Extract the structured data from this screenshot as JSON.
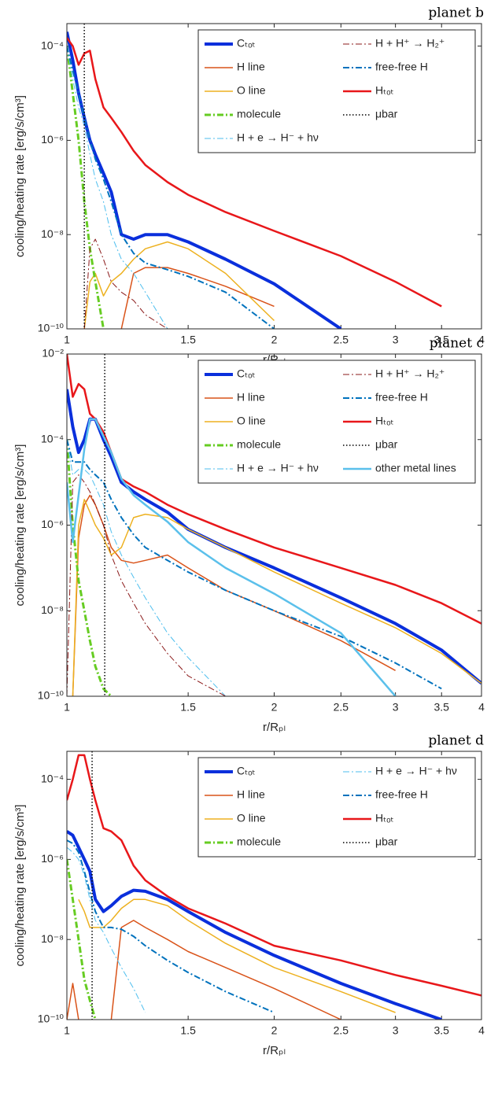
{
  "chart_data": [
    {
      "type": "line",
      "title": "planet b",
      "xlabel": "r/Rₚₗ",
      "ylabel": "cooling/heating rate [erg/s/cm³]",
      "xscale": "log",
      "yscale": "log",
      "xlim": [
        1,
        4
      ],
      "xticks": [
        1,
        1.5,
        2,
        2.5,
        3,
        3.5,
        4
      ],
      "ylim": [
        1e-10,
        0.0003
      ],
      "yticks": [
        {
          "value": 1e-10,
          "label": "10⁻¹⁰"
        },
        {
          "value": 1e-08,
          "label": "10⁻⁸"
        },
        {
          "value": 1e-06,
          "label": "10⁻⁶"
        },
        {
          "value": 0.0001,
          "label": "10⁻⁴"
        }
      ],
      "legend": "upper right",
      "x": [
        1,
        1.02,
        1.04,
        1.06,
        1.08,
        1.1,
        1.13,
        1.16,
        1.2,
        1.25,
        1.3,
        1.4,
        1.5,
        1.7,
        2,
        2.5,
        3,
        3.5,
        4
      ],
      "series": [
        {
          "name": "Cₜₒₜ",
          "color": "#0a2fdc",
          "width": 4,
          "style": "solid",
          "values": [
            0.0002,
            5e-05,
            1e-05,
            3e-06,
            1e-06,
            5e-07,
            2e-07,
            8e-08,
            1e-08,
            8e-09,
            1e-08,
            1e-08,
            7e-09,
            3e-09,
            9e-10,
            1e-10,
            null,
            null,
            null
          ]
        },
        {
          "name": "H line",
          "color": "#d95319",
          "width": 1.5,
          "style": "solid",
          "values": [
            null,
            null,
            null,
            null,
            null,
            null,
            null,
            null,
            1e-10,
            1.5e-09,
            2e-09,
            2e-09,
            1.5e-09,
            8e-10,
            3e-10,
            null,
            null,
            null,
            null
          ]
        },
        {
          "name": "O line",
          "color": "#edb120",
          "width": 1.5,
          "style": "solid",
          "values": [
            null,
            null,
            null,
            1e-10,
            1e-09,
            1.5e-09,
            5e-10,
            1e-09,
            1.5e-09,
            3e-09,
            5e-09,
            7e-09,
            5e-09,
            1.5e-09,
            1.5e-10,
            null,
            null,
            null,
            null
          ]
        },
        {
          "name": "molecule",
          "color": "#66cc22",
          "width": 3,
          "style": "dashdot",
          "values": [
            0.0001,
            1e-05,
            1e-06,
            5e-08,
            5e-09,
            1e-09,
            1e-10,
            null,
            null,
            null,
            null,
            null,
            null,
            null,
            null,
            null,
            null,
            null,
            null
          ]
        },
        {
          "name": "H + e → H⁻ + hν",
          "color": "#4dbeee",
          "width": 1,
          "style": "dashdot",
          "values": [
            0.0001,
            2e-05,
            5e-06,
            2e-06,
            5e-07,
            1.5e-07,
            5e-08,
            1e-08,
            3e-09,
            1.5e-09,
            6e-10,
            1e-10,
            null,
            null,
            null,
            null,
            null,
            null,
            null
          ]
        },
        {
          "name": "H + H⁺ → H₂⁺",
          "color": "#8b1a1a",
          "width": 1,
          "style": "dashdot",
          "values": [
            null,
            null,
            null,
            1e-10,
            5e-09,
            8e-09,
            3e-09,
            1e-09,
            6e-10,
            4e-10,
            2e-10,
            1e-10,
            null,
            null,
            null,
            null,
            null,
            null,
            null
          ]
        },
        {
          "name": "free-free H",
          "color": "#0072bd",
          "width": 2,
          "style": "dashdot",
          "values": [
            0.0001,
            3e-05,
            1e-05,
            3e-06,
            1e-06,
            4e-07,
            1.5e-07,
            5e-08,
            1e-08,
            4e-09,
            2.5e-09,
            1.8e-09,
            1.3e-09,
            6e-10,
            1e-10,
            null,
            null,
            null,
            null
          ]
        },
        {
          "name": "Hₜₒₜ",
          "color": "#e8171a",
          "width": 2.5,
          "style": "solid",
          "values": [
            0.00015,
            0.0001,
            4e-05,
            7e-05,
            8e-05,
            2e-05,
            5e-06,
            3e-06,
            1.5e-06,
            6e-07,
            3e-07,
            1.3e-07,
            7e-08,
            3e-08,
            1.2e-08,
            3.5e-09,
            1e-09,
            3e-10,
            null
          ]
        },
        {
          "name": "μbar",
          "color": "#000000",
          "width": 1.5,
          "style": "dotted",
          "x": 1.06
        }
      ]
    },
    {
      "type": "line",
      "title": "planet c",
      "xlabel": "r/Rₚₗ",
      "ylabel": "cooling/heating rate [erg/s/cm³]",
      "xscale": "log",
      "yscale": "log",
      "xlim": [
        1,
        4
      ],
      "xticks": [
        1,
        1.5,
        2,
        2.5,
        3,
        3.5,
        4
      ],
      "ylim": [
        1e-10,
        0.01
      ],
      "yticks": [
        {
          "value": 1e-10,
          "label": "10⁻¹⁰"
        },
        {
          "value": 1e-08,
          "label": "10⁻⁸"
        },
        {
          "value": 1e-06,
          "label": "10⁻⁶"
        },
        {
          "value": 0.0001,
          "label": "10⁻⁴"
        },
        {
          "value": 0.01,
          "label": "10⁻²"
        }
      ],
      "legend": "upper right",
      "x": [
        1,
        1.02,
        1.04,
        1.06,
        1.08,
        1.1,
        1.13,
        1.16,
        1.2,
        1.25,
        1.3,
        1.4,
        1.5,
        1.7,
        2,
        2.5,
        3,
        3.5,
        4
      ],
      "series": [
        {
          "name": "Cₜₒₜ",
          "color": "#0a2fdc",
          "width": 4,
          "style": "solid",
          "values": [
            0.0015,
            0.0002,
            5e-05,
            0.0001,
            0.0003,
            0.0003,
            0.0001,
            4e-05,
            1e-05,
            6e-06,
            4e-06,
            2e-06,
            8e-07,
            3e-07,
            1e-07,
            2e-08,
            5e-09,
            1.2e-09,
            2e-10
          ]
        },
        {
          "name": "H line",
          "color": "#d95319",
          "width": 1.5,
          "style": "solid",
          "values": [
            null,
            1e-10,
            5e-07,
            3e-06,
            5e-06,
            3e-06,
            1e-06,
            3e-07,
            1.5e-07,
            1.3e-07,
            1.5e-07,
            2e-07,
            1e-07,
            3e-08,
            1e-08,
            2e-09,
            4e-10,
            null,
            null
          ]
        },
        {
          "name": "O line",
          "color": "#edb120",
          "width": 1.5,
          "style": "solid",
          "values": [
            null,
            1e-10,
            1e-06,
            4e-06,
            2e-06,
            1e-06,
            5e-07,
            2e-07,
            3e-07,
            1.5e-06,
            1.8e-06,
            1.5e-06,
            8e-07,
            3e-07,
            8e-08,
            1.5e-08,
            4e-09,
            1e-09,
            2e-10
          ]
        },
        {
          "name": "molecule",
          "color": "#66cc22",
          "width": 3,
          "style": "dashdot",
          "values": [
            0.0001,
            1e-06,
            5e-08,
            1e-08,
            2e-09,
            5e-10,
            1.5e-10,
            1e-10,
            null,
            null,
            null,
            null,
            null,
            null,
            null,
            null,
            null,
            null,
            null
          ]
        },
        {
          "name": "H + e → H⁻ + hν",
          "color": "#4dbeee",
          "width": 1,
          "style": "dashdot",
          "values": [
            0.0001,
            1.5e-05,
            2e-05,
            2e-05,
            1.5e-05,
            8e-06,
            3e-06,
            7e-07,
            2e-07,
            6e-08,
            2e-08,
            3e-09,
            8e-10,
            1e-10,
            null,
            null,
            null,
            null,
            null
          ]
        },
        {
          "name": "H + H⁺ → H₂⁺",
          "color": "#8b1a1a",
          "width": 1,
          "style": "dashdot",
          "values": [
            1e-10,
            1e-05,
            1.5e-05,
            1e-05,
            6e-06,
            3e-06,
            1e-06,
            2e-07,
            5e-08,
            1.5e-08,
            5e-09,
            1e-09,
            3e-10,
            1e-10,
            null,
            null,
            null,
            null,
            null
          ]
        },
        {
          "name": "free-free H",
          "color": "#0072bd",
          "width": 2,
          "style": "dashdot",
          "values": [
            0.0001,
            3e-05,
            3e-05,
            3e-05,
            2e-05,
            1.5e-05,
            1e-05,
            4e-06,
            1.5e-06,
            6e-07,
            3e-07,
            1.5e-07,
            8e-08,
            3e-08,
            1e-08,
            2.5e-09,
            6e-10,
            1.5e-10,
            null
          ]
        },
        {
          "name": "Hₜₒₜ",
          "color": "#e8171a",
          "width": 2.5,
          "style": "solid",
          "values": [
            0.01,
            0.001,
            0.002,
            0.0015,
            0.0004,
            0.0003,
            0.00015,
            5e-05,
            1.2e-05,
            8e-06,
            6e-06,
            3e-06,
            1.8e-06,
            8e-07,
            3e-07,
            1e-07,
            4e-08,
            1.5e-08,
            5e-09
          ]
        },
        {
          "name": "μbar",
          "color": "#000000",
          "width": 1.5,
          "style": "dotted",
          "x": 1.135
        },
        {
          "name": "other metal lines",
          "color": "#5bc0eb",
          "width": 2.5,
          "style": "solid",
          "values": [
            1e-05,
            4e-07,
            5e-06,
            6e-05,
            0.0003,
            0.0003,
            0.00012,
            5e-05,
            1.2e-05,
            5e-06,
            3e-06,
            1.2e-06,
            4e-07,
            1e-07,
            2.5e-08,
            3e-09,
            1e-10,
            null,
            null
          ]
        }
      ]
    },
    {
      "type": "line",
      "title": "planet d",
      "xlabel": "r/Rₚₗ",
      "ylabel": "cooling/heating rate [erg/s/cm³]",
      "xscale": "log",
      "yscale": "log",
      "xlim": [
        1,
        4
      ],
      "xticks": [
        1,
        1.5,
        2,
        2.5,
        3,
        3.5,
        4
      ],
      "ylim": [
        1e-10,
        0.0005
      ],
      "yticks": [
        {
          "value": 1e-10,
          "label": "10⁻¹⁰"
        },
        {
          "value": 1e-08,
          "label": "10⁻⁸"
        },
        {
          "value": 1e-06,
          "label": "10⁻⁶"
        },
        {
          "value": 0.0001,
          "label": "10⁻⁴"
        }
      ],
      "legend": "upper right",
      "x": [
        1,
        1.02,
        1.04,
        1.06,
        1.08,
        1.1,
        1.13,
        1.16,
        1.2,
        1.25,
        1.3,
        1.4,
        1.5,
        1.7,
        2,
        2.5,
        3,
        3.5,
        4
      ],
      "series": [
        {
          "name": "Cₜₒₜ",
          "color": "#0a2fdc",
          "width": 4,
          "style": "solid",
          "values": [
            5e-06,
            4e-06,
            2e-06,
            1e-06,
            5e-07,
            1e-07,
            5e-08,
            7e-08,
            1.2e-07,
            1.7e-07,
            1.6e-07,
            1e-07,
            5e-08,
            1.5e-08,
            4e-09,
            8e-10,
            2.5e-10,
            1e-10,
            null
          ]
        },
        {
          "name": "H line",
          "color": "#d95319",
          "width": 1.5,
          "style": "solid",
          "values": [
            1e-10,
            8e-10,
            1e-10,
            null,
            null,
            null,
            null,
            1e-10,
            2e-08,
            3e-08,
            2e-08,
            1e-08,
            5e-09,
            2e-09,
            6e-10,
            1e-10,
            null,
            null,
            null
          ]
        },
        {
          "name": "O line",
          "color": "#edb120",
          "width": 1.5,
          "style": "solid",
          "values": [
            null,
            null,
            1e-07,
            5e-08,
            2e-08,
            2e-08,
            2e-08,
            3e-08,
            6e-08,
            1e-07,
            1e-07,
            7e-08,
            3e-08,
            8e-09,
            2e-09,
            5e-10,
            1.5e-10,
            null,
            null
          ]
        },
        {
          "name": "molecule",
          "color": "#66cc22",
          "width": 3,
          "style": "dashdot",
          "values": [
            1e-06,
            1e-07,
            1e-08,
            1e-09,
            3e-10,
            1e-10,
            null,
            null,
            null,
            null,
            null,
            null,
            null,
            null,
            null,
            null,
            null,
            null,
            null
          ]
        },
        {
          "name": "H + e → H⁻ + hν",
          "color": "#4dbeee",
          "width": 1,
          "style": "dashdot",
          "values": [
            2e-06,
            1.5e-06,
            1e-06,
            4e-07,
            1e-07,
            3e-08,
            1.5e-08,
            6e-09,
            2e-09,
            6e-10,
            1.5e-10,
            null,
            null,
            null,
            null,
            null,
            null,
            null,
            null
          ]
        },
        {
          "name": "free-free H",
          "color": "#0072bd",
          "width": 2,
          "style": "dashdot",
          "values": [
            3e-06,
            2.5e-06,
            1.5e-06,
            5e-07,
            1.5e-07,
            5e-08,
            2e-08,
            2e-08,
            1.8e-08,
            1.2e-08,
            7e-09,
            3e-09,
            1.5e-09,
            5e-10,
            1.5e-10,
            null,
            null,
            null,
            null
          ]
        },
        {
          "name": "Hₜₒₜ",
          "color": "#e8171a",
          "width": 2.5,
          "style": "solid",
          "values": [
            3e-05,
            0.0001,
            0.0004,
            0.0004,
            0.0001,
            3e-05,
            6e-06,
            5e-06,
            3e-06,
            7e-07,
            3e-07,
            1.2e-07,
            6e-08,
            2.5e-08,
            7e-09,
            3e-09,
            1.3e-09,
            7e-10,
            4e-10
          ]
        },
        {
          "name": "μbar",
          "color": "#000000",
          "width": 1.5,
          "style": "dotted",
          "x": 1.088
        }
      ]
    }
  ]
}
